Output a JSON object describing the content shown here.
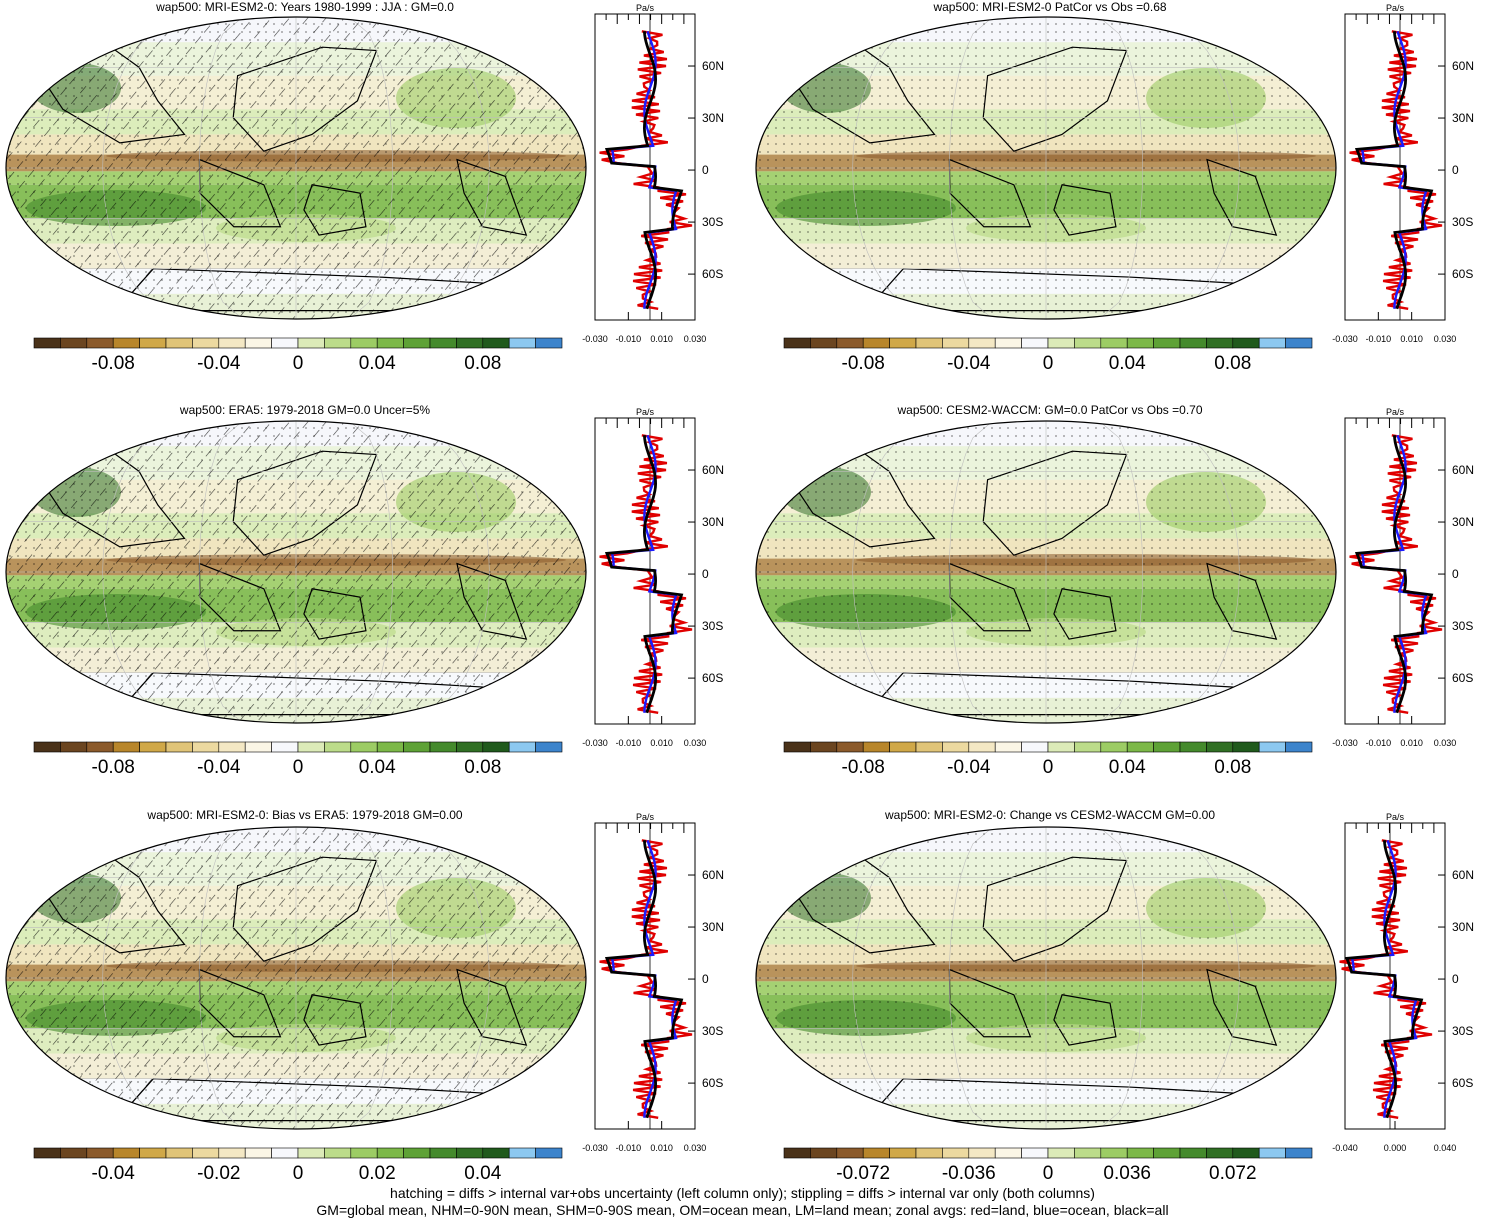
{
  "panels": [
    {
      "title": "wap500: MRI-ESM2-0: Years 1980-1999 : JJA : GM=0.0",
      "colorbar_labels": [
        "-0.08",
        "-0.04",
        "0",
        "0.04",
        "0.08"
      ],
      "profile_xticks": [
        "-0.030",
        "-0.010",
        "0.010",
        "0.030"
      ],
      "hatched": true
    },
    {
      "title": "wap500: MRI-ESM2-0 PatCor vs Obs =0.68",
      "colorbar_labels": [
        "-0.08",
        "-0.04",
        "0",
        "0.04",
        "0.08"
      ],
      "profile_xticks": [
        "-0.030",
        "-0.010",
        "0.010",
        "0.030"
      ],
      "hatched": false
    },
    {
      "title": "wap500: ERA5: 1979-2018 GM=0.0 Uncer=5%",
      "colorbar_labels": [
        "-0.08",
        "-0.04",
        "0",
        "0.04",
        "0.08"
      ],
      "profile_xticks": [
        "-0.030",
        "-0.010",
        "0.010",
        "0.030"
      ],
      "hatched": true
    },
    {
      "title": "wap500: CESM2-WACCM: GM=0.0 PatCor vs Obs =0.70",
      "colorbar_labels": [
        "-0.08",
        "-0.04",
        "0",
        "0.04",
        "0.08"
      ],
      "profile_xticks": [
        "-0.030",
        "-0.010",
        "0.010",
        "0.030"
      ],
      "hatched": false
    },
    {
      "title": "wap500: MRI-ESM2-0: Bias vs ERA5: 1979-2018 GM=0.00",
      "colorbar_labels": [
        "-0.04",
        "-0.02",
        "0",
        "0.02",
        "0.04"
      ],
      "profile_xticks": [
        "-0.030",
        "-0.010",
        "0.010",
        "0.030"
      ],
      "hatched": true
    },
    {
      "title": "wap500: MRI-ESM2-0: Change vs CESM2-WACCM GM=0.00",
      "colorbar_labels": [
        "-0.072",
        "-0.036",
        "0",
        "0.036",
        "0.072"
      ],
      "profile_xticks": [
        "-0.040",
        "0.000",
        "0.040"
      ],
      "hatched": false
    }
  ],
  "profile_unit": "Pa/s",
  "profile_lat_labels": [
    "60N",
    "30N",
    "0",
    "30S",
    "60S"
  ],
  "colorbar_colors": [
    "#4a3219",
    "#6b4520",
    "#8b5a2b",
    "#b8862b",
    "#d0a848",
    "#e0c478",
    "#ecd9a0",
    "#f4e8c4",
    "#fbf6e6",
    "#f7f8fc",
    "#dcebb8",
    "#bcdc8a",
    "#9ccc64",
    "#7cb848",
    "#5ea236",
    "#448a2c",
    "#306f24",
    "#205a1c",
    "#8cc8f0",
    "#3c84cc"
  ],
  "footer": {
    "line1": "hatching = diffs > internal var+obs uncertainty (left column only); stippling = diffs > internal var only (both columns)",
    "line2": "GM=global mean, NHM=0-90N mean, SHM=0-90S mean, OM=ocean mean, LM=land mean; zonal avgs: red=land, blue=ocean, black=all"
  },
  "chart_data": [
    {
      "type": "heatmap",
      "title": "wap500: MRI-ESM2-0: Years 1980-1999 : JJA : GM=0.0",
      "colorbar_range": [
        -0.1,
        0.1
      ],
      "profile": {
        "type": "line",
        "xlim": [
          -0.035,
          0.035
        ],
        "unit": "Pa/s",
        "series": [
          {
            "name": "land",
            "color": "red"
          },
          {
            "name": "ocean",
            "color": "blue"
          },
          {
            "name": "all",
            "color": "black"
          }
        ]
      }
    },
    {
      "type": "heatmap",
      "title": "wap500: MRI-ESM2-0 PatCor vs Obs =0.68",
      "colorbar_range": [
        -0.1,
        0.1
      ]
    },
    {
      "type": "heatmap",
      "title": "wap500: ERA5: 1979-2018 GM=0.0 Uncer=5%",
      "colorbar_range": [
        -0.1,
        0.1
      ]
    },
    {
      "type": "heatmap",
      "title": "wap500: CESM2-WACCM: GM=0.0 PatCor vs Obs =0.70",
      "colorbar_range": [
        -0.1,
        0.1
      ]
    },
    {
      "type": "heatmap",
      "title": "wap500: MRI-ESM2-0: Bias vs ERA5: 1979-2018 GM=0.00",
      "colorbar_range": [
        -0.05,
        0.05
      ]
    },
    {
      "type": "heatmap",
      "title": "wap500: MRI-ESM2-0: Change vs CESM2-WACCM GM=0.00",
      "colorbar_range": [
        -0.09,
        0.09
      ]
    }
  ]
}
